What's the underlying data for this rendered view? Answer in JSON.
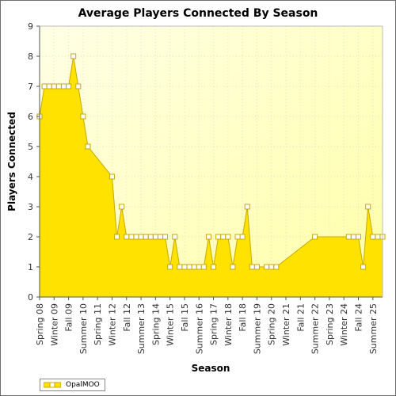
{
  "chart_data": {
    "type": "area",
    "title": "Average Players Connected By Season",
    "xlabel": "Season",
    "ylabel": "Players Connected",
    "ylim": [
      0,
      9
    ],
    "yticks": [
      0,
      1,
      2,
      3,
      4,
      5,
      6,
      7,
      8,
      9
    ],
    "grid": true,
    "legend_placement": "bottom-left",
    "colors": {
      "fill": "#FFE200",
      "line": "#C8A800",
      "marker_fill": "#FFFFFF",
      "bg_top": "#FFFFE6",
      "bg_bottom": "#FFFFA8"
    },
    "x_tick_labels": [
      "Spring 08",
      "Winter 09",
      "Fall 09",
      "Summer 10",
      "Spring 11",
      "Winter 12",
      "Fall 12",
      "Summer 13",
      "Spring 14",
      "Winter 15",
      "Fall 15",
      "Summer 16",
      "Spring 17",
      "Winter 18",
      "Fall 18",
      "Summer 19",
      "Spring 20",
      "Winter 21",
      "Fall 21",
      "Summer 22",
      "Spring 23",
      "Winter 24",
      "Fall 24",
      "Summer 25"
    ],
    "series": [
      {
        "name": "OpalMOO",
        "values": [
          6,
          7,
          7,
          7,
          7,
          7,
          7,
          8,
          7,
          6,
          5,
          null,
          null,
          null,
          null,
          4,
          2,
          3,
          2,
          2,
          2,
          2,
          2,
          2,
          2,
          2,
          2,
          1,
          2,
          1,
          1,
          1,
          1,
          1,
          1,
          2,
          1,
          2,
          2,
          2,
          1,
          2,
          2,
          3,
          1,
          1,
          null,
          1,
          1,
          1,
          null,
          null,
          null,
          null,
          null,
          null,
          null,
          2,
          null,
          null,
          null,
          null,
          null,
          null,
          2,
          2,
          2,
          1,
          3,
          2,
          2,
          2
        ]
      }
    ]
  }
}
